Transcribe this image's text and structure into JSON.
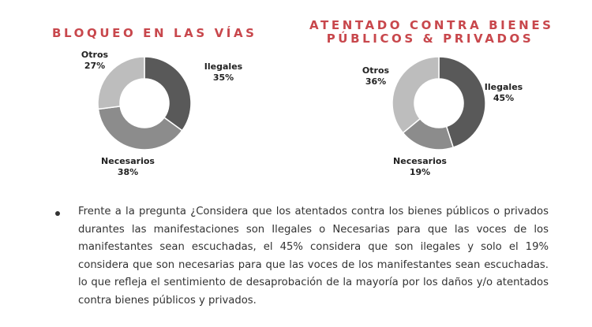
{
  "chart_data": [
    {
      "type": "pie",
      "title": "BLOQUEO EN LAS VÍAS",
      "slices": [
        {
          "name": "Ilegales",
          "value": 35,
          "label": "35%",
          "color": "#595959"
        },
        {
          "name": "Necesarios",
          "value": 38,
          "label": "38%",
          "color": "#8c8c8c"
        },
        {
          "name": "Otros",
          "value": 27,
          "label": "27%",
          "color": "#bdbdbd"
        }
      ]
    },
    {
      "type": "pie",
      "title": "ATENTADO CONTRA BIENES PÚBLICOS & PRIVADOS",
      "title_lines": [
        "ATENTADO CONTRA BIENES",
        "PÚBLICOS & PRIVADOS"
      ],
      "slices": [
        {
          "name": "Ilegales",
          "value": 45,
          "label": "45%",
          "color": "#595959"
        },
        {
          "name": "Necesarios",
          "value": 19,
          "label": "19%",
          "color": "#8c8c8c"
        },
        {
          "name": "Otros",
          "value": 36,
          "label": "36%",
          "color": "#bdbdbd"
        }
      ]
    }
  ],
  "body": {
    "bullet_text": "Frente a la pregunta ¿Considera que los atentados contra los bienes públicos o privados durantes las manifestaciones son Ilegales o Necesarias para que las voces de los manifestantes sean escuchadas, el 45% considera que son ilegales y solo el 19% considera que son necesarias para que las voces de los manifestantes sean escuchadas. lo que refleja el sentimiento de desaprobación de la mayoría por los daños y/o atentados contra bienes públicos y privados."
  }
}
